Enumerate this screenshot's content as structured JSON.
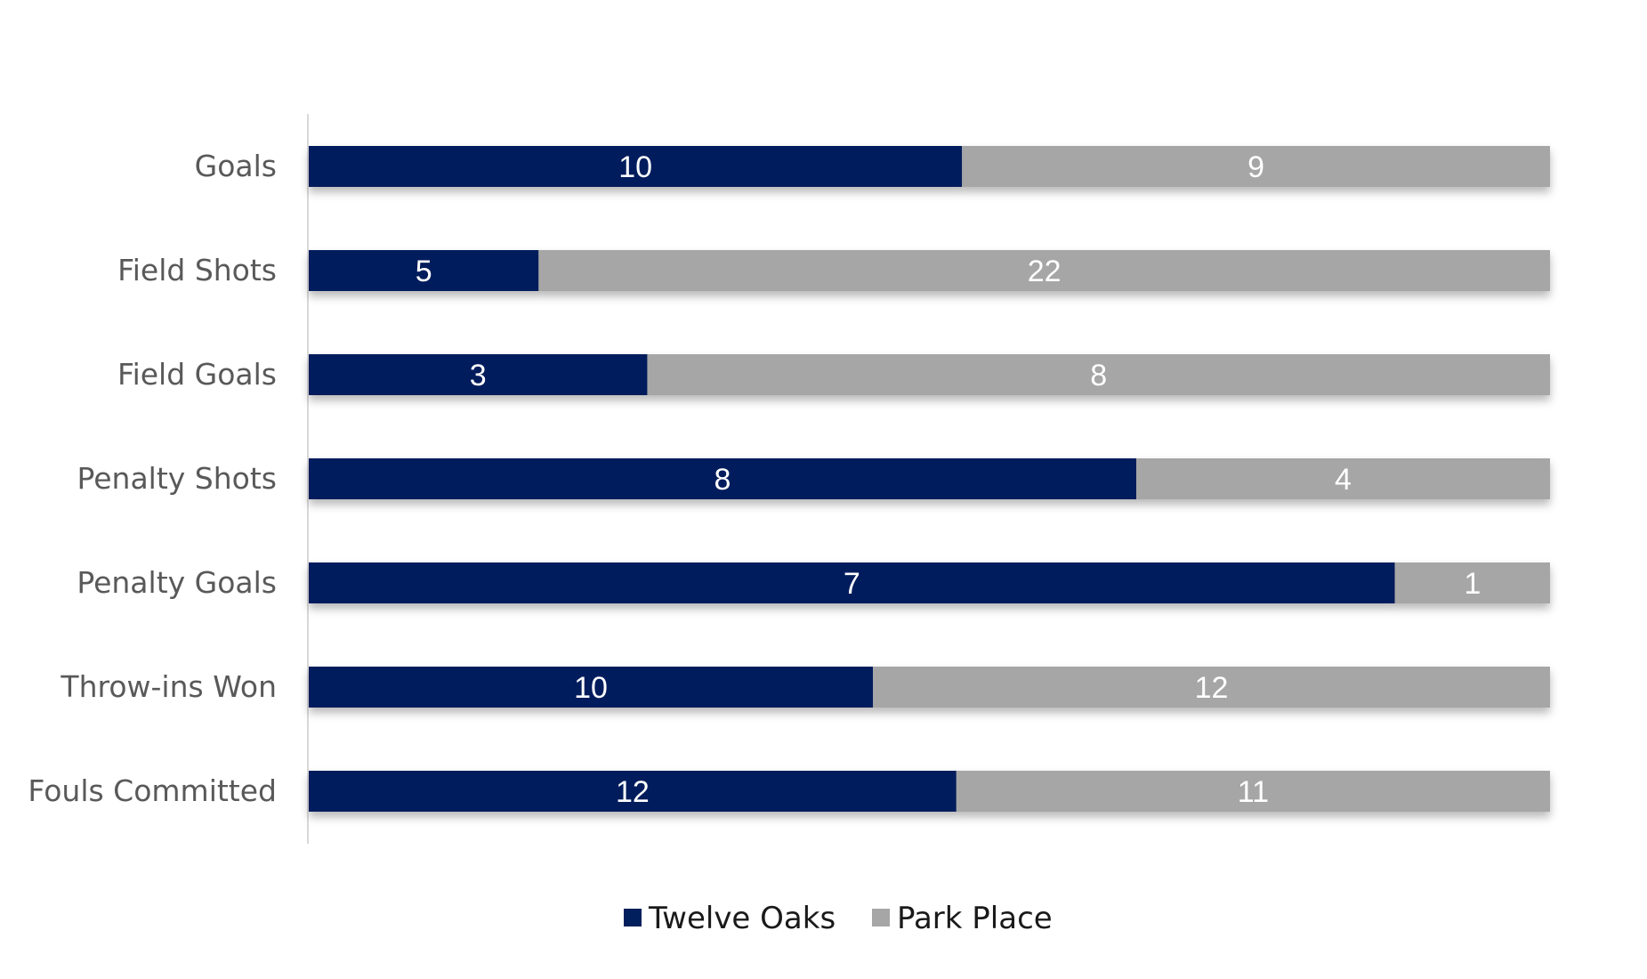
{
  "chart_data": {
    "type": "bar",
    "orientation": "horizontal",
    "stacking": "percent",
    "title": "",
    "xlabel": "",
    "ylabel": "",
    "categories": [
      "Goals",
      "Field Shots",
      "Field Goals",
      "Penalty Shots",
      "Penalty Goals",
      "Throw-ins Won",
      "Fouls Committed"
    ],
    "series": [
      {
        "name": "Twelve Oaks",
        "values": [
          10,
          5,
          3,
          8,
          7,
          10,
          12
        ],
        "color": "#001F5C"
      },
      {
        "name": "Park Place",
        "values": [
          9,
          22,
          8,
          4,
          1,
          12,
          11
        ],
        "color": "#A6A6A6"
      }
    ],
    "data_labels": true,
    "grid": false,
    "legend_position": "bottom"
  }
}
